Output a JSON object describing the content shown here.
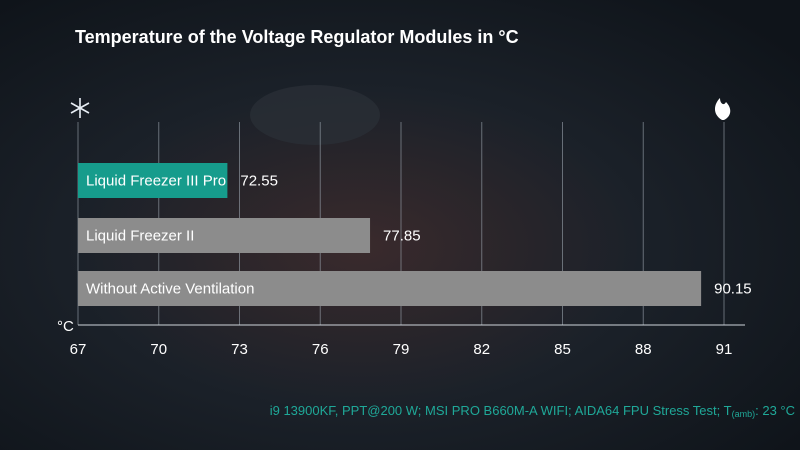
{
  "chart_data": {
    "type": "bar",
    "orientation": "horizontal",
    "title": "Temperature of the Voltage Regulator Modules in °C",
    "categories": [
      "Liquid Freezer III Pro",
      "Liquid Freezer II",
      "Without Active Ventilation"
    ],
    "values": [
      72.55,
      77.85,
      90.15
    ],
    "colors": [
      "#169c8c",
      "#8c8c8c",
      "#8c8c8c"
    ],
    "xlim": [
      67,
      91
    ],
    "xticks": [
      67,
      70,
      73,
      76,
      79,
      82,
      85,
      88,
      91
    ],
    "x_label": "°C",
    "grid": true,
    "footnote": {
      "text": "i9 13900KF, PPT@200 W; MSI PRO B660M-A WIFI; AIDA64 FPU Stress Test; T",
      "sub": "(amb)",
      "tail": ": 23 °C"
    }
  }
}
